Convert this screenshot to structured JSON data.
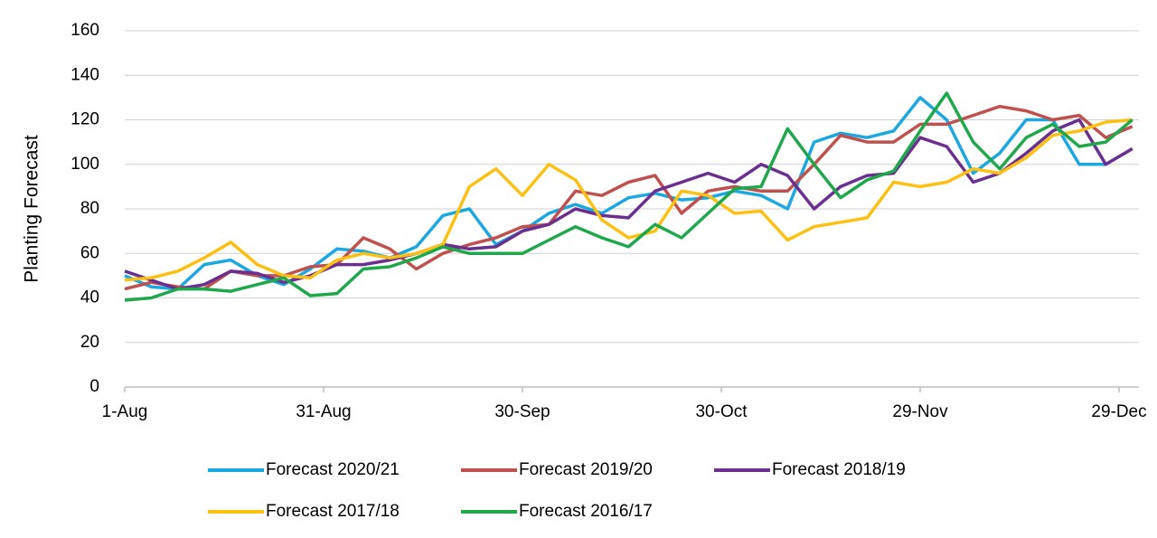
{
  "chart_data": {
    "type": "line",
    "y_label": "Planting Forecast",
    "x": [
      0,
      4,
      8,
      12,
      16,
      20,
      24,
      28,
      32,
      36,
      40,
      44,
      48,
      52,
      56,
      60,
      64,
      68,
      72,
      76,
      80,
      84,
      88,
      92,
      96,
      100,
      104,
      108,
      112,
      116,
      120,
      124,
      128,
      132,
      136,
      140,
      144,
      148,
      152
    ],
    "xlim": [
      0,
      153
    ],
    "xticks": [
      {
        "value": 0,
        "label": "1-Aug"
      },
      {
        "value": 30,
        "label": "31-Aug"
      },
      {
        "value": 60,
        "label": "30-Sep"
      },
      {
        "value": 90,
        "label": "30-Oct"
      },
      {
        "value": 120,
        "label": "29-Nov"
      },
      {
        "value": 150,
        "label": "29-Dec"
      }
    ],
    "ylim": [
      0,
      160
    ],
    "yticks": [
      0,
      20,
      40,
      60,
      80,
      100,
      120,
      140,
      160
    ],
    "grid": true,
    "legend": "bottom",
    "series": [
      {
        "name": "Forecast 2020/21",
        "color": "#1ba7e0",
        "values": [
          50,
          45,
          44,
          55,
          57,
          50,
          46,
          53,
          62,
          61,
          58,
          63,
          77,
          80,
          64,
          70,
          78,
          82,
          78,
          85,
          87,
          84,
          85,
          88,
          86,
          80,
          110,
          114,
          112,
          115,
          130,
          120,
          96,
          105,
          120,
          120,
          100,
          100,
          107
        ]
      },
      {
        "name": "Forecast 2019/20",
        "color": "#c0504d",
        "values": [
          44,
          47,
          45,
          44,
          52,
          50,
          50,
          54,
          55,
          67,
          62,
          53,
          60,
          64,
          67,
          72,
          73,
          88,
          86,
          92,
          95,
          78,
          88,
          90,
          88,
          88,
          100,
          113,
          110,
          110,
          118,
          118,
          122,
          126,
          124,
          120,
          122,
          112,
          117
        ]
      },
      {
        "name": "Forecast 2018/19",
        "color": "#6b2f8f",
        "values": [
          52,
          48,
          44,
          46,
          52,
          51,
          47,
          50,
          55,
          55,
          57,
          60,
          64,
          62,
          63,
          70,
          73,
          80,
          77,
          76,
          88,
          92,
          96,
          92,
          100,
          95,
          80,
          90,
          95,
          96,
          112,
          108,
          92,
          96,
          105,
          115,
          120,
          100,
          107
        ]
      },
      {
        "name": "Forecast 2017/18",
        "color": "#fcc012",
        "values": [
          48,
          49,
          52,
          58,
          65,
          55,
          50,
          49,
          57,
          60,
          58,
          60,
          64,
          90,
          98,
          86,
          100,
          93,
          75,
          67,
          70,
          88,
          86,
          78,
          79,
          66,
          72,
          74,
          76,
          92,
          90,
          92,
          98,
          96,
          103,
          113,
          115,
          119,
          120
        ]
      },
      {
        "name": "Forecast 2016/17",
        "color": "#1ea84b",
        "values": [
          39,
          40,
          44,
          44,
          43,
          46,
          49,
          41,
          42,
          53,
          54,
          58,
          63,
          60,
          60,
          60,
          66,
          72,
          67,
          63,
          73,
          67,
          78,
          89,
          90,
          116,
          100,
          85,
          93,
          97,
          115,
          132,
          110,
          98,
          112,
          118,
          108,
          110,
          120
        ]
      }
    ]
  }
}
